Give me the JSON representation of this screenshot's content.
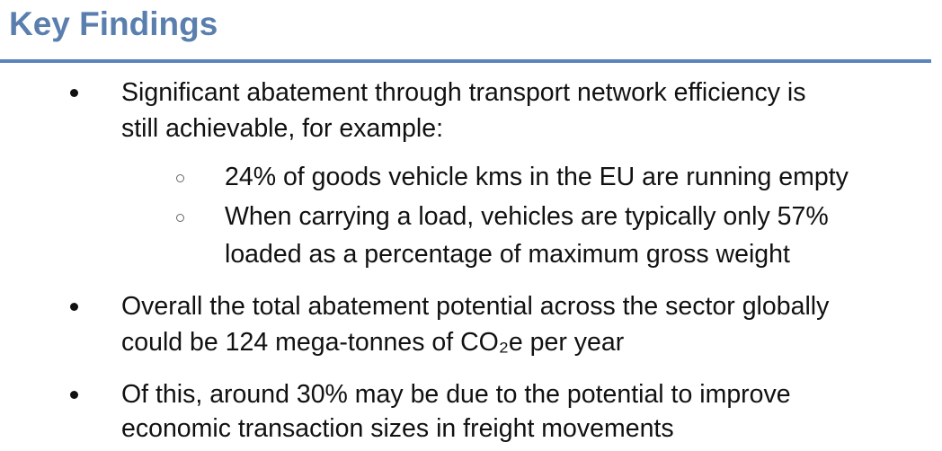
{
  "header": {
    "title": "Key Findings"
  },
  "bullets": [
    {
      "lines": [
        "Significant abatement through transport network efficiency is",
        "still achievable, for example:"
      ],
      "sub": [
        {
          "lines": [
            "24% of goods vehicle kms in the EU are running empty"
          ]
        },
        {
          "lines": [
            "When carrying a load, vehicles are typically only 57%",
            "loaded as a percentage of maximum gross weight"
          ]
        }
      ]
    },
    {
      "lines": [
        "Overall the total abatement potential across the sector globally",
        "could be 124 mega-tonnes of CO₂e per year"
      ]
    },
    {
      "lines": [
        "Of this, around 30% may be due to the potential to improve",
        "economic transaction sizes in freight movements"
      ]
    }
  ]
}
